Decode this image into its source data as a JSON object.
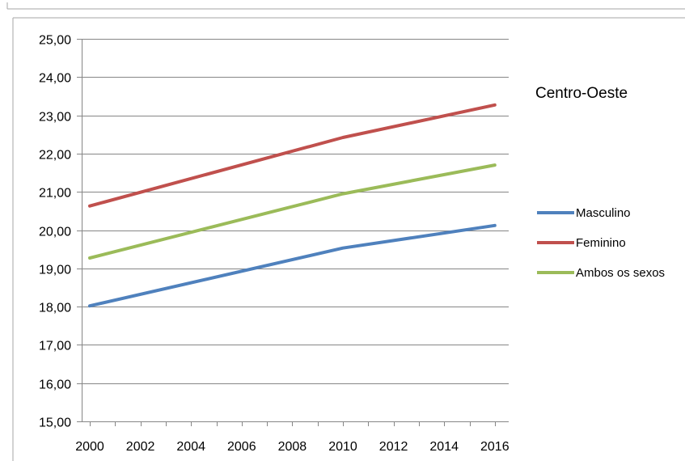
{
  "chart_data": {
    "type": "line",
    "title": "Centro-Oeste",
    "x": [
      2000,
      2010,
      2016
    ],
    "xticks": [
      "2000",
      "2002",
      "2004",
      "2006",
      "2008",
      "2010",
      "2012",
      "2014",
      "2016"
    ],
    "yticks": [
      "15,00",
      "16,00",
      "17,00",
      "18,00",
      "19,00",
      "20,00",
      "21,00",
      "22,00",
      "23,00",
      "24,00",
      "25,00"
    ],
    "ylim": [
      15,
      25
    ],
    "xlim": [
      1999.3,
      2016.5
    ],
    "grid": "horizontal",
    "legend_position": "right",
    "series": [
      {
        "name": "Masculino",
        "color": "#4f81bd",
        "values": [
          18.02,
          19.53,
          20.12
        ]
      },
      {
        "name": "Feminino",
        "color": "#c0504d",
        "values": [
          20.63,
          22.42,
          23.27
        ]
      },
      {
        "name": "Ambos os sexos",
        "color": "#9bbb59",
        "values": [
          19.27,
          20.95,
          21.7
        ]
      }
    ]
  }
}
